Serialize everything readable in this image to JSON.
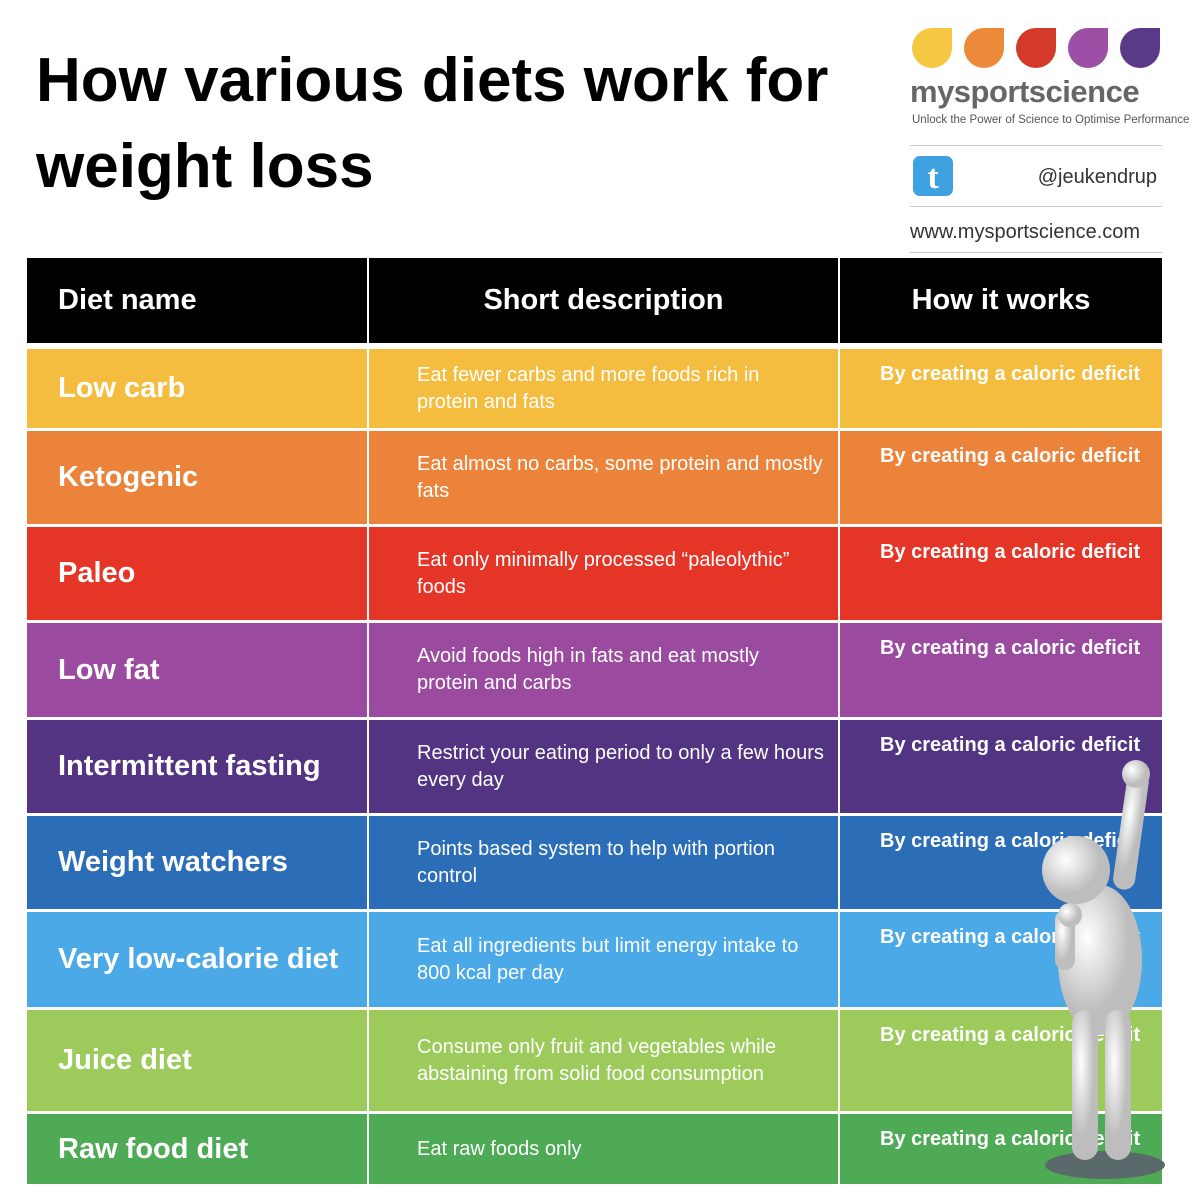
{
  "header": {
    "title": "How various diets work for weight loss"
  },
  "logo": {
    "brand": "mysportscience",
    "tagline": "Unlock the Power of Science to Optimise Performance"
  },
  "social": {
    "handle": "@jeukendrup",
    "website": "www.mysportscience.com"
  },
  "table": {
    "columns": [
      "Diet name",
      "Short description",
      "How it works"
    ],
    "rows": [
      [
        "Low carb",
        "Eat fewer carbs and more foods rich in protein and fats",
        "By creating a caloric deficit"
      ],
      [
        "Ketogenic",
        "Eat almost no carbs, some protein and mostly fats",
        "By creating a caloric deficit"
      ],
      [
        "Paleo",
        "Eat only minimally processed “paleolythic” foods",
        "By creating a caloric deficit"
      ],
      [
        "Low fat",
        "Avoid foods high in fats and eat mostly protein and carbs",
        "By creating a caloric deficit"
      ],
      [
        "Intermittent fasting",
        "Restrict your eating period to only a few hours every day",
        "By creating a caloric deficit"
      ],
      [
        "Weight watchers",
        "Points based system to help with portion control",
        "By creating a caloric deficit"
      ],
      [
        "Very low-calorie diet",
        "Eat all ingredients but limit energy intake to 800 kcal per day",
        "By creating a caloric deficit"
      ],
      [
        "Juice diet",
        "Consume only fruit and vegetables while abstaining from solid food consumption",
        "By creating a caloric deficit"
      ],
      [
        "Raw food diet",
        "Eat raw foods only",
        "By creating a caloric deficit"
      ]
    ]
  }
}
